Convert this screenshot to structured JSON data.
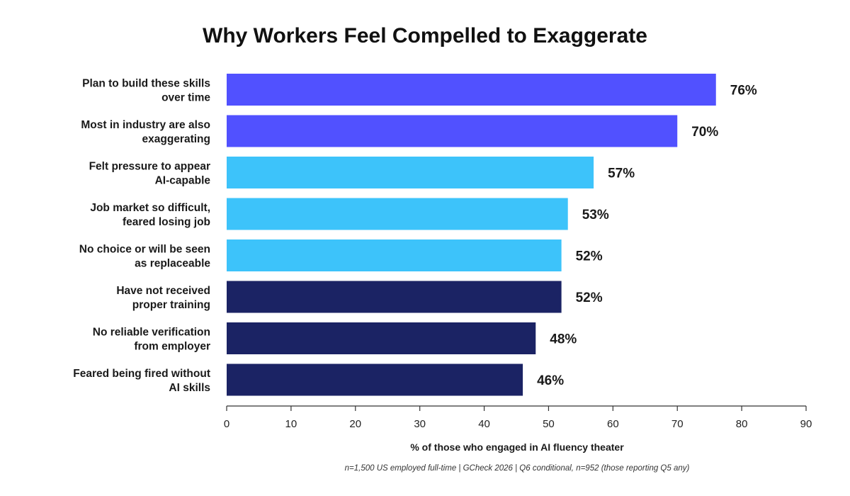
{
  "chart_data": {
    "type": "bar",
    "orientation": "horizontal",
    "title": "Why Workers Feel Compelled to Exaggerate",
    "xlabel": "% of those who engaged in AI fluency theater",
    "ylabel": "",
    "footnote": "n=1,500 US employed full-time | GCheck 2026 | Q6 conditional, n=952 (those reporting Q5 any)",
    "xlim": [
      0,
      90
    ],
    "xticks": [
      0,
      10,
      20,
      30,
      40,
      50,
      60,
      70,
      80,
      90
    ],
    "grid": false,
    "value_suffix": "%",
    "categories": [
      [
        "Plan to build these skills",
        "over time"
      ],
      [
        "Most in industry are also",
        "exaggerating"
      ],
      [
        "Felt pressure to appear",
        "AI-capable"
      ],
      [
        "Job market so difficult,",
        "feared losing job"
      ],
      [
        "No choice or will be seen",
        "as replaceable"
      ],
      [
        "Have not received",
        "proper training"
      ],
      [
        "No reliable verification",
        "from employer"
      ],
      [
        "Feared being fired without",
        "AI skills"
      ]
    ],
    "values": [
      76,
      70,
      57,
      53,
      52,
      52,
      48,
      46
    ],
    "value_labels": [
      "76%",
      "70%",
      "57%",
      "53%",
      "52%",
      "52%",
      "48%",
      "46%"
    ],
    "colors": [
      "#5151FF",
      "#5151FF",
      "#3DC3FA",
      "#3DC3FA",
      "#3DC3FA",
      "#1B2364",
      "#1B2364",
      "#1B2364"
    ]
  }
}
